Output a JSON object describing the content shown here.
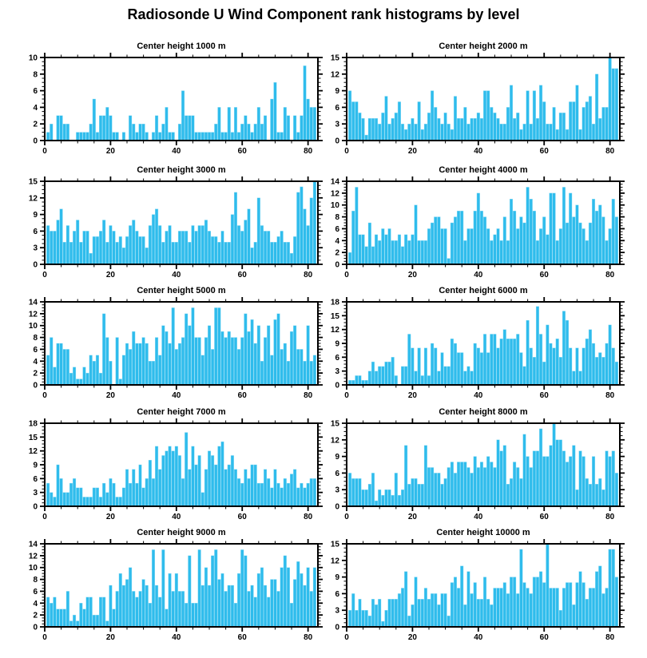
{
  "header": {
    "title": "Radiosonde U Wind Component rank histograms by level"
  },
  "colors": {
    "bar": "#2FBCEC",
    "bar_edge": "#8FDCF5",
    "axis": "#000000",
    "background": "#ffffff"
  },
  "chart_data": [
    {
      "type": "bar",
      "title": "Center height 1000 m",
      "xlabel": "",
      "ylabel": "",
      "ylim": [
        0,
        10
      ],
      "ytick_step": 2,
      "xticks": [
        0,
        20,
        40,
        60,
        80
      ],
      "x_range": [
        0,
        83
      ],
      "grid": false,
      "legend": "none",
      "values": [
        1,
        2,
        0,
        3,
        3,
        2,
        2,
        0,
        0,
        1,
        1,
        1,
        1,
        2,
        5,
        1,
        3,
        3,
        4,
        3,
        1,
        1,
        0,
        1,
        0,
        3,
        2,
        1,
        2,
        2,
        1,
        0,
        1,
        3,
        1,
        2,
        4,
        1,
        1,
        0,
        2,
        6,
        3,
        3,
        3,
        1,
        1,
        1,
        1,
        1,
        1,
        2,
        4,
        1,
        1,
        4,
        1,
        4,
        1,
        2,
        3,
        2,
        1,
        2,
        4,
        2,
        3,
        0,
        5,
        7,
        1,
        1,
        4,
        3,
        0,
        3,
        1,
        3,
        9,
        5,
        4,
        4
      ]
    },
    {
      "type": "bar",
      "title": "Center height 2000 m",
      "xlabel": "",
      "ylabel": "",
      "ylim": [
        0,
        15
      ],
      "ytick_step": 3,
      "xticks": [
        0,
        20,
        40,
        60,
        80
      ],
      "x_range": [
        0,
        83
      ],
      "grid": false,
      "legend": "none",
      "values": [
        9,
        7,
        7,
        5,
        4,
        1,
        4,
        4,
        4,
        3,
        5,
        8,
        3,
        4,
        5,
        7,
        3,
        2,
        3,
        4,
        3,
        7,
        2,
        3,
        5,
        9,
        6,
        4,
        3,
        5,
        3,
        2,
        8,
        4,
        4,
        6,
        3,
        4,
        4,
        5,
        4,
        9,
        9,
        6,
        5,
        4,
        3,
        3,
        6,
        10,
        4,
        5,
        2,
        3,
        9,
        3,
        9,
        4,
        10,
        7,
        3,
        3,
        6,
        2,
        5,
        5,
        2,
        7,
        7,
        10,
        2,
        6,
        7,
        8,
        3,
        12,
        4,
        6,
        6,
        15,
        13,
        13
      ]
    },
    {
      "type": "bar",
      "title": "Center height 3000 m",
      "xlabel": "",
      "ylabel": "",
      "ylim": [
        0,
        15
      ],
      "ytick_step": 3,
      "xticks": [
        0,
        20,
        40,
        60,
        80
      ],
      "x_range": [
        0,
        83
      ],
      "grid": false,
      "legend": "none",
      "values": [
        7,
        6,
        6,
        8,
        10,
        4,
        7,
        4,
        6,
        8,
        4,
        6,
        6,
        2,
        5,
        5,
        6,
        8,
        4,
        7,
        6,
        4,
        5,
        3,
        5,
        7,
        8,
        6,
        5,
        5,
        3,
        7,
        9,
        10,
        7,
        4,
        6,
        7,
        4,
        4,
        6,
        6,
        6,
        4,
        7,
        6,
        7,
        7,
        8,
        6,
        5,
        5,
        4,
        6,
        4,
        4,
        9,
        13,
        7,
        6,
        8,
        10,
        3,
        4,
        12,
        7,
        6,
        6,
        4,
        4,
        5,
        6,
        4,
        4,
        2,
        5,
        13,
        14,
        10,
        7,
        12,
        15
      ]
    },
    {
      "type": "bar",
      "title": "Center height 4000 m",
      "xlabel": "",
      "ylabel": "",
      "ylim": [
        0,
        14
      ],
      "ytick_step": 2,
      "xticks": [
        0,
        20,
        40,
        60,
        80
      ],
      "x_range": [
        0,
        83
      ],
      "grid": false,
      "legend": "none",
      "values": [
        2,
        9,
        13,
        5,
        5,
        3,
        7,
        3,
        5,
        4,
        6,
        5,
        6,
        4,
        4,
        5,
        3,
        5,
        4,
        5,
        10,
        4,
        4,
        4,
        6,
        7,
        8,
        8,
        6,
        6,
        1,
        7,
        8,
        9,
        9,
        4,
        6,
        6,
        9,
        12,
        9,
        8,
        6,
        4,
        5,
        6,
        4,
        8,
        4,
        11,
        9,
        6,
        8,
        7,
        13,
        11,
        9,
        4,
        6,
        8,
        5,
        12,
        12,
        4,
        6,
        13,
        7,
        12,
        8,
        10,
        7,
        6,
        4,
        7,
        11,
        9,
        10,
        8,
        4,
        6,
        11,
        8
      ]
    },
    {
      "type": "bar",
      "title": "Center height 5000 m",
      "xlabel": "",
      "ylabel": "",
      "ylim": [
        0,
        14
      ],
      "ytick_step": 2,
      "xticks": [
        0,
        20,
        40,
        60,
        80
      ],
      "x_range": [
        0,
        83
      ],
      "grid": false,
      "legend": "none",
      "values": [
        5,
        8,
        3,
        7,
        7,
        6,
        6,
        2,
        3,
        1,
        1,
        3,
        2,
        5,
        4,
        5,
        2,
        12,
        8,
        4,
        0,
        8,
        1,
        5,
        7,
        6,
        9,
        7,
        7,
        8,
        7,
        4,
        4,
        8,
        5,
        10,
        9,
        7,
        13,
        6,
        7,
        8,
        12,
        10,
        13,
        8,
        8,
        5,
        8,
        10,
        6,
        13,
        13,
        9,
        8,
        9,
        8,
        8,
        6,
        8,
        12,
        9,
        11,
        7,
        10,
        4,
        8,
        10,
        5,
        11,
        12,
        6,
        7,
        4,
        9,
        10,
        6,
        6,
        4,
        10,
        4,
        5
      ]
    },
    {
      "type": "bar",
      "title": "Center height 6000 m",
      "xlabel": "",
      "ylabel": "",
      "ylim": [
        0,
        18
      ],
      "ytick_step": 3,
      "xticks": [
        0,
        20,
        40,
        60,
        80
      ],
      "x_range": [
        0,
        83
      ],
      "grid": false,
      "legend": "none",
      "values": [
        1,
        1,
        2,
        2,
        1,
        1,
        3,
        5,
        3,
        4,
        4,
        5,
        5,
        6,
        2,
        0,
        4,
        4,
        11,
        8,
        3,
        8,
        2,
        8,
        2,
        9,
        8,
        3,
        7,
        4,
        4,
        10,
        9,
        7,
        7,
        3,
        4,
        3,
        9,
        8,
        7,
        11,
        7,
        11,
        11,
        8,
        10,
        12,
        10,
        10,
        10,
        11,
        7,
        4,
        14,
        8,
        6,
        17,
        11,
        5,
        13,
        9,
        8,
        10,
        6,
        16,
        14,
        8,
        3,
        8,
        3,
        8,
        10,
        12,
        9,
        6,
        7,
        6,
        9,
        13,
        8,
        5
      ]
    },
    {
      "type": "bar",
      "title": "Center height 7000 m",
      "xlabel": "",
      "ylabel": "",
      "ylim": [
        0,
        18
      ],
      "ytick_step": 3,
      "xticks": [
        0,
        20,
        40,
        60,
        80
      ],
      "x_range": [
        0,
        83
      ],
      "grid": false,
      "legend": "none",
      "values": [
        5,
        3,
        2,
        9,
        6,
        3,
        3,
        5,
        6,
        4,
        4,
        2,
        2,
        2,
        4,
        4,
        2,
        5,
        3,
        6,
        5,
        2,
        2,
        4,
        8,
        5,
        8,
        5,
        9,
        4,
        6,
        10,
        6,
        13,
        8,
        11,
        12,
        13,
        12,
        13,
        11,
        6,
        16,
        8,
        13,
        9,
        11,
        3,
        8,
        12,
        11,
        9,
        13,
        14,
        8,
        9,
        11,
        8,
        6,
        5,
        8,
        6,
        9,
        9,
        5,
        5,
        8,
        6,
        4,
        8,
        5,
        4,
        6,
        5,
        7,
        8,
        4,
        5,
        4,
        5,
        6,
        6
      ]
    },
    {
      "type": "bar",
      "title": "Center height 8000 m",
      "xlabel": "",
      "ylabel": "",
      "ylim": [
        0,
        15
      ],
      "ytick_step": 3,
      "xticks": [
        0,
        20,
        40,
        60,
        80
      ],
      "x_range": [
        0,
        83
      ],
      "grid": false,
      "legend": "none",
      "values": [
        6,
        5,
        5,
        5,
        3,
        3,
        4,
        6,
        1,
        3,
        2,
        3,
        3,
        2,
        6,
        2,
        3,
        11,
        4,
        5,
        5,
        4,
        4,
        11,
        7,
        7,
        6,
        6,
        4,
        5,
        7,
        8,
        6,
        8,
        8,
        8,
        7,
        6,
        9,
        7,
        8,
        7,
        9,
        8,
        7,
        12,
        10,
        11,
        4,
        5,
        8,
        7,
        5,
        13,
        9,
        7,
        10,
        10,
        14,
        9,
        9,
        11,
        15,
        12,
        12,
        10,
        8,
        9,
        11,
        3,
        10,
        9,
        5,
        4,
        9,
        4,
        5,
        3,
        10,
        9,
        10,
        6
      ]
    },
    {
      "type": "bar",
      "title": "Center height 9000 m",
      "xlabel": "",
      "ylabel": "",
      "ylim": [
        0,
        14
      ],
      "ytick_step": 2,
      "xticks": [
        0,
        20,
        40,
        60,
        80
      ],
      "x_range": [
        0,
        83
      ],
      "grid": false,
      "legend": "none",
      "values": [
        5,
        4,
        5,
        3,
        3,
        3,
        6,
        1,
        2,
        1,
        4,
        3,
        5,
        5,
        2,
        2,
        5,
        5,
        1,
        7,
        3,
        6,
        9,
        7,
        8,
        10,
        6,
        5,
        6,
        8,
        7,
        4,
        13,
        7,
        5,
        13,
        3,
        9,
        6,
        9,
        6,
        6,
        4,
        12,
        4,
        4,
        13,
        7,
        10,
        7,
        12,
        13,
        8,
        9,
        6,
        7,
        7,
        4,
        9,
        13,
        12,
        6,
        7,
        5,
        9,
        10,
        7,
        5,
        8,
        8,
        6,
        10,
        12,
        10,
        4,
        8,
        11,
        9,
        7,
        10,
        6,
        10
      ]
    },
    {
      "type": "bar",
      "title": "Center height 10000 m",
      "xlabel": "",
      "ylabel": "",
      "ylim": [
        0,
        15
      ],
      "ytick_step": 3,
      "xticks": [
        0,
        20,
        40,
        60,
        80
      ],
      "x_range": [
        0,
        83
      ],
      "grid": false,
      "legend": "none",
      "values": [
        3,
        6,
        3,
        5,
        3,
        3,
        2,
        5,
        4,
        5,
        1,
        3,
        5,
        5,
        5,
        6,
        7,
        10,
        2,
        4,
        9,
        5,
        5,
        7,
        5,
        6,
        6,
        4,
        6,
        6,
        2,
        8,
        9,
        7,
        11,
        4,
        10,
        6,
        8,
        5,
        5,
        9,
        5,
        4,
        7,
        7,
        7,
        8,
        6,
        9,
        9,
        6,
        14,
        8,
        7,
        6,
        9,
        9,
        10,
        8,
        15,
        7,
        7,
        7,
        3,
        7,
        8,
        8,
        4,
        8,
        10,
        8,
        5,
        7,
        7,
        10,
        11,
        6,
        7,
        14,
        14,
        9
      ]
    }
  ]
}
